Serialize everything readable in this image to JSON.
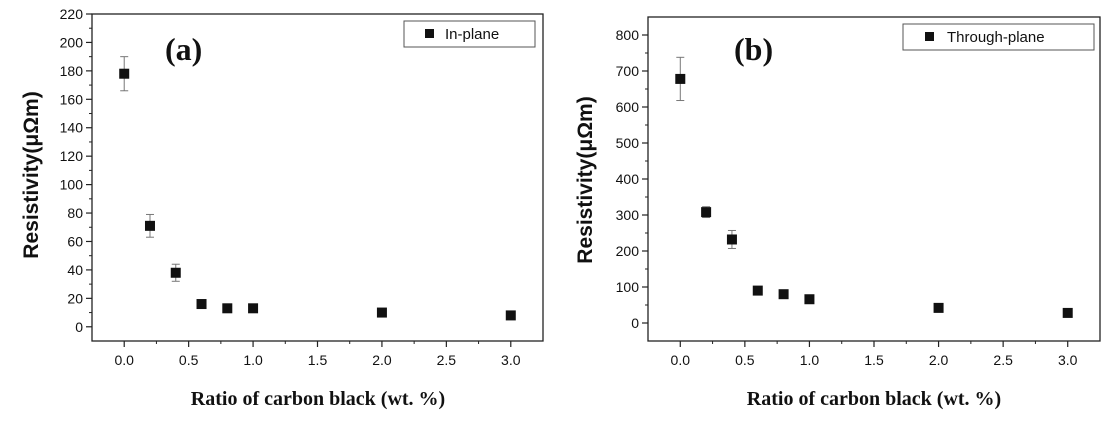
{
  "chart_data": [
    {
      "type": "scatter",
      "panel_label": "(a)",
      "xlabel": "Ratio of carbon black (wt. %)",
      "ylabel": "Resistivity(μΩm)",
      "xlim": [
        -0.25,
        3.25
      ],
      "ylim": [
        -10,
        220
      ],
      "xticks": [
        "0.0",
        "0.5",
        "1.0",
        "1.5",
        "2.0",
        "2.5",
        "3.0"
      ],
      "yticks": [
        "0",
        "20",
        "40",
        "60",
        "80",
        "100",
        "120",
        "140",
        "160",
        "180",
        "200",
        "220"
      ],
      "legend_position": "top-right",
      "series": [
        {
          "name": "In-plane",
          "x": [
            0.0,
            0.2,
            0.4,
            0.6,
            0.8,
            1.0,
            2.0,
            3.0
          ],
          "y": [
            178,
            71,
            38,
            16,
            13,
            13,
            10,
            8
          ],
          "yerr": [
            12,
            8,
            6,
            2,
            2,
            2,
            2,
            2
          ]
        }
      ]
    },
    {
      "type": "scatter",
      "panel_label": "(b)",
      "xlabel": "Ratio of carbon black (wt. %)",
      "ylabel": "Resistivity(μΩm)",
      "xlim": [
        -0.25,
        3.25
      ],
      "ylim": [
        -50,
        850
      ],
      "xticks": [
        "0.0",
        "0.5",
        "1.0",
        "1.5",
        "2.0",
        "2.5",
        "3.0"
      ],
      "yticks": [
        "0",
        "100",
        "200",
        "300",
        "400",
        "500",
        "600",
        "700",
        "800"
      ],
      "legend_position": "top-right",
      "series": [
        {
          "name": "Through-plane",
          "x": [
            0.0,
            0.2,
            0.4,
            0.6,
            0.8,
            1.0,
            2.0,
            3.0
          ],
          "y": [
            678,
            308,
            232,
            90,
            80,
            66,
            42,
            28
          ],
          "yerr": [
            60,
            15,
            25,
            8,
            6,
            6,
            5,
            4
          ]
        }
      ]
    }
  ]
}
